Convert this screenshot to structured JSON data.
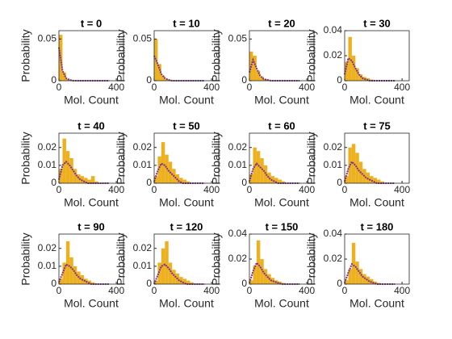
{
  "chart_data": [
    {
      "type": "histogram",
      "title": "t = 0",
      "xlabel": "Mol. Count",
      "ylabel": "Probability",
      "color": "#edb120",
      "bins": [
        0,
        25,
        50,
        75,
        100,
        125,
        150,
        175,
        200,
        225,
        250,
        275,
        300,
        325,
        350
      ],
      "values": [
        0.055,
        0.01,
        0.002,
        0.001,
        0,
        0,
        0,
        0,
        0,
        0,
        0,
        0,
        0,
        0
      ],
      "line": {
        "color": "#7e2f8e",
        "x": [
          0,
          25,
          50,
          75,
          100,
          125,
          150,
          175,
          200,
          225,
          250,
          275,
          300,
          325,
          350
        ],
        "values": [
          0.04,
          0.012,
          0.003,
          0.001,
          0,
          0,
          0,
          0,
          0,
          0,
          0,
          0,
          0,
          0,
          0
        ]
      },
      "xlim": [
        0,
        450
      ],
      "ylim": [
        0,
        0.06
      ],
      "xticks": [
        0,
        400
      ],
      "yticks": [
        0,
        0.05
      ]
    },
    {
      "type": "histogram",
      "title": "t = 10",
      "xlabel": "Mol. Count",
      "ylabel": "Probability",
      "color": "#edb120",
      "bins": [
        0,
        25,
        50,
        75,
        100,
        125,
        150,
        175,
        200,
        225,
        250,
        275,
        300,
        325,
        350
      ],
      "values": [
        0.05,
        0.02,
        0.006,
        0.002,
        0.001,
        0,
        0,
        0,
        0,
        0,
        0,
        0,
        0,
        0
      ],
      "line": {
        "color": "#7e2f8e",
        "x": [
          0,
          25,
          50,
          75,
          100,
          125,
          150,
          175,
          200,
          225,
          250,
          275,
          300,
          325,
          350
        ],
        "values": [
          0.03,
          0.02,
          0.008,
          0.003,
          0.001,
          0,
          0,
          0,
          0,
          0,
          0,
          0,
          0,
          0,
          0
        ]
      },
      "xlim": [
        0,
        450
      ],
      "ylim": [
        0,
        0.06
      ],
      "xticks": [
        0,
        400
      ],
      "yticks": [
        0,
        0.05
      ]
    },
    {
      "type": "histogram",
      "title": "t = 20",
      "xlabel": "Mol. Count",
      "ylabel": "Probability",
      "color": "#edb120",
      "bins": [
        0,
        25,
        50,
        75,
        100,
        125,
        150,
        175,
        200,
        225,
        250,
        275,
        300,
        325,
        350
      ],
      "values": [
        0.035,
        0.03,
        0.012,
        0.005,
        0.002,
        0.001,
        0,
        0,
        0,
        0,
        0,
        0,
        0,
        0
      ],
      "line": {
        "color": "#7e2f8e",
        "x": [
          0,
          25,
          50,
          75,
          100,
          125,
          150,
          175,
          200,
          225,
          250,
          275,
          300,
          325,
          350
        ],
        "values": [
          0.01,
          0.025,
          0.015,
          0.006,
          0.002,
          0.001,
          0,
          0,
          0,
          0,
          0,
          0,
          0,
          0,
          0
        ]
      },
      "xlim": [
        0,
        450
      ],
      "ylim": [
        0,
        0.06
      ],
      "xticks": [
        0,
        400
      ],
      "yticks": [
        0,
        0.05
      ]
    },
    {
      "type": "histogram",
      "title": "t = 30",
      "xlabel": "Mol. Count",
      "ylabel": "Probability",
      "color": "#edb120",
      "bins": [
        0,
        25,
        50,
        75,
        100,
        125,
        150,
        175,
        200,
        225,
        250,
        275,
        300,
        325,
        350
      ],
      "values": [
        0.015,
        0.035,
        0.02,
        0.01,
        0.005,
        0.003,
        0.002,
        0.001,
        0,
        0,
        0,
        0,
        0,
        0
      ],
      "line": {
        "color": "#7e2f8e",
        "x": [
          0,
          25,
          50,
          75,
          100,
          125,
          150,
          175,
          200,
          225,
          250,
          275,
          300,
          325,
          350
        ],
        "values": [
          0.005,
          0.018,
          0.016,
          0.01,
          0.005,
          0.002,
          0.001,
          0,
          0,
          0,
          0,
          0,
          0,
          0,
          0
        ]
      },
      "xlim": [
        0,
        450
      ],
      "ylim": [
        0,
        0.04
      ],
      "xticks": [
        0,
        400
      ],
      "yticks": [
        0,
        0.02,
        0.04
      ]
    },
    {
      "type": "histogram",
      "title": "t = 40",
      "xlabel": "Mol. Count",
      "ylabel": "Probability",
      "color": "#edb120",
      "bins": [
        0,
        25,
        50,
        75,
        100,
        125,
        150,
        175,
        200,
        225,
        250,
        275,
        300,
        325,
        350
      ],
      "values": [
        0.008,
        0.025,
        0.018,
        0.014,
        0.008,
        0.005,
        0.004,
        0.003,
        0.002,
        0.004,
        0.001,
        0,
        0,
        0
      ],
      "line": {
        "color": "#7e2f8e",
        "x": [
          0,
          25,
          50,
          75,
          100,
          125,
          150,
          175,
          200,
          225,
          250,
          275,
          300,
          325,
          350
        ],
        "values": [
          0.002,
          0.01,
          0.012,
          0.01,
          0.007,
          0.004,
          0.002,
          0.001,
          0,
          0,
          0,
          0,
          0,
          0,
          0
        ]
      },
      "xlim": [
        0,
        450
      ],
      "ylim": [
        0,
        0.028
      ],
      "xticks": [
        0,
        400
      ],
      "yticks": [
        0,
        0.01,
        0.02
      ]
    },
    {
      "type": "histogram",
      "title": "t = 50",
      "xlabel": "Mol. Count",
      "ylabel": "Probability",
      "color": "#edb120",
      "bins": [
        0,
        25,
        50,
        75,
        100,
        125,
        150,
        175,
        200,
        225,
        250,
        275,
        300,
        325,
        350
      ],
      "values": [
        0.004,
        0.015,
        0.023,
        0.016,
        0.012,
        0.008,
        0.005,
        0.003,
        0.002,
        0.001,
        0,
        0,
        0,
        0
      ],
      "line": {
        "color": "#7e2f8e",
        "x": [
          0,
          25,
          50,
          75,
          100,
          125,
          150,
          175,
          200,
          225,
          250,
          275,
          300,
          325,
          350
        ],
        "values": [
          0.001,
          0.007,
          0.011,
          0.01,
          0.007,
          0.005,
          0.003,
          0.001,
          0,
          0,
          0,
          0,
          0,
          0,
          0
        ]
      },
      "xlim": [
        0,
        450
      ],
      "ylim": [
        0,
        0.028
      ],
      "xticks": [
        0,
        400
      ],
      "yticks": [
        0,
        0.01,
        0.02
      ]
    },
    {
      "type": "histogram",
      "title": "t = 60",
      "xlabel": "Mol. Count",
      "ylabel": "Probability",
      "color": "#edb120",
      "bins": [
        0,
        25,
        50,
        75,
        100,
        125,
        150,
        175,
        200,
        225,
        250,
        275,
        300,
        325,
        350
      ],
      "values": [
        0.005,
        0.02,
        0.018,
        0.014,
        0.01,
        0.006,
        0.004,
        0.003,
        0.002,
        0.001,
        0,
        0,
        0,
        0
      ],
      "line": {
        "color": "#7e2f8e",
        "x": [
          0,
          25,
          50,
          75,
          100,
          125,
          150,
          175,
          200,
          225,
          250,
          275,
          300,
          325,
          350
        ],
        "values": [
          0.001,
          0.008,
          0.011,
          0.009,
          0.007,
          0.004,
          0.002,
          0.001,
          0,
          0,
          0,
          0,
          0,
          0,
          0
        ]
      },
      "xlim": [
        0,
        450
      ],
      "ylim": [
        0,
        0.028
      ],
      "xticks": [
        0,
        400
      ],
      "yticks": [
        0,
        0.01,
        0.02
      ]
    },
    {
      "type": "histogram",
      "title": "t = 75",
      "xlabel": "Mol. Count",
      "ylabel": "Probability",
      "color": "#edb120",
      "bins": [
        0,
        25,
        50,
        75,
        100,
        125,
        150,
        175,
        200,
        225,
        250,
        275,
        300,
        325,
        350
      ],
      "values": [
        0.004,
        0.02,
        0.022,
        0.017,
        0.012,
        0.008,
        0.006,
        0.004,
        0.003,
        0.002,
        0.001,
        0,
        0,
        0
      ],
      "line": {
        "color": "#7e2f8e",
        "x": [
          0,
          25,
          50,
          75,
          100,
          125,
          150,
          175,
          200,
          225,
          250,
          275,
          300,
          325,
          350
        ],
        "values": [
          0.001,
          0.008,
          0.012,
          0.01,
          0.007,
          0.005,
          0.003,
          0.002,
          0.001,
          0,
          0,
          0,
          0,
          0,
          0
        ]
      },
      "xlim": [
        0,
        450
      ],
      "ylim": [
        0,
        0.028
      ],
      "xticks": [
        0,
        400
      ],
      "yticks": [
        0,
        0.01,
        0.02
      ]
    },
    {
      "type": "histogram",
      "title": "t = 90",
      "xlabel": "Mol. Count",
      "ylabel": "Probability",
      "color": "#edb120",
      "bins": [
        0,
        25,
        50,
        75,
        100,
        125,
        150,
        175,
        200,
        225,
        250,
        275,
        300,
        325,
        350
      ],
      "values": [
        0.003,
        0.012,
        0.024,
        0.015,
        0.01,
        0.007,
        0.005,
        0.003,
        0.002,
        0.001,
        0,
        0,
        0,
        0
      ],
      "line": {
        "color": "#7e2f8e",
        "x": [
          0,
          25,
          50,
          75,
          100,
          125,
          150,
          175,
          200,
          225,
          250,
          275,
          300,
          325,
          350
        ],
        "values": [
          0.001,
          0.006,
          0.011,
          0.01,
          0.008,
          0.005,
          0.003,
          0.002,
          0.001,
          0,
          0,
          0,
          0,
          0,
          0
        ]
      },
      "xlim": [
        0,
        450
      ],
      "ylim": [
        0,
        0.028
      ],
      "xticks": [
        0,
        400
      ],
      "yticks": [
        0,
        0.01,
        0.02
      ]
    },
    {
      "type": "histogram",
      "title": "t = 120",
      "xlabel": "Mol. Count",
      "ylabel": "Probability",
      "color": "#edb120",
      "bins": [
        0,
        25,
        50,
        75,
        100,
        125,
        150,
        175,
        200,
        225,
        250,
        275,
        300,
        325,
        350
      ],
      "values": [
        0.002,
        0.012,
        0.02,
        0.024,
        0.012,
        0.008,
        0.006,
        0.004,
        0.003,
        0.002,
        0.001,
        0,
        0,
        0
      ],
      "line": {
        "color": "#7e2f8e",
        "x": [
          0,
          25,
          50,
          75,
          100,
          125,
          150,
          175,
          200,
          225,
          250,
          275,
          300,
          325,
          350
        ],
        "values": [
          0,
          0.005,
          0.01,
          0.011,
          0.009,
          0.006,
          0.004,
          0.002,
          0.001,
          0,
          0,
          0,
          0,
          0,
          0
        ]
      },
      "xlim": [
        0,
        450
      ],
      "ylim": [
        0,
        0.028
      ],
      "xticks": [
        0,
        400
      ],
      "yticks": [
        0,
        0.01,
        0.02
      ]
    },
    {
      "type": "histogram",
      "title": "t = 150",
      "xlabel": "Mol. Count",
      "ylabel": "Probability",
      "color": "#edb120",
      "bins": [
        0,
        25,
        50,
        75,
        100,
        125,
        150,
        175,
        200,
        225,
        250,
        275,
        300,
        325,
        350
      ],
      "values": [
        0.003,
        0.015,
        0.035,
        0.02,
        0.012,
        0.008,
        0.005,
        0.003,
        0.002,
        0.001,
        0,
        0,
        0,
        0
      ],
      "line": {
        "color": "#7e2f8e",
        "x": [
          0,
          25,
          50,
          75,
          100,
          125,
          150,
          175,
          200,
          225,
          250,
          275,
          300,
          325,
          350
        ],
        "values": [
          0.001,
          0.01,
          0.017,
          0.014,
          0.009,
          0.006,
          0.003,
          0.002,
          0.001,
          0,
          0,
          0,
          0,
          0,
          0
        ]
      },
      "xlim": [
        0,
        450
      ],
      "ylim": [
        0,
        0.04
      ],
      "xticks": [
        0,
        400
      ],
      "yticks": [
        0,
        0.02,
        0.04
      ]
    },
    {
      "type": "histogram",
      "title": "t = 180",
      "xlabel": "Mol. Count",
      "ylabel": "Probability",
      "color": "#edb120",
      "bins": [
        0,
        25,
        50,
        75,
        100,
        125,
        150,
        175,
        200,
        225,
        250,
        275,
        300,
        325,
        350
      ],
      "values": [
        0.003,
        0.012,
        0.033,
        0.018,
        0.012,
        0.008,
        0.006,
        0.004,
        0.002,
        0.001,
        0,
        0,
        0,
        0
      ],
      "line": {
        "color": "#7e2f8e",
        "x": [
          0,
          25,
          50,
          75,
          100,
          125,
          150,
          175,
          200,
          225,
          250,
          275,
          300,
          325,
          350
        ],
        "values": [
          0.001,
          0.009,
          0.016,
          0.014,
          0.01,
          0.006,
          0.004,
          0.002,
          0.001,
          0,
          0,
          0,
          0,
          0,
          0
        ]
      },
      "xlim": [
        0,
        450
      ],
      "ylim": [
        0,
        0.04
      ],
      "xticks": [
        0,
        400
      ],
      "yticks": [
        0,
        0.02,
        0.04
      ]
    }
  ]
}
